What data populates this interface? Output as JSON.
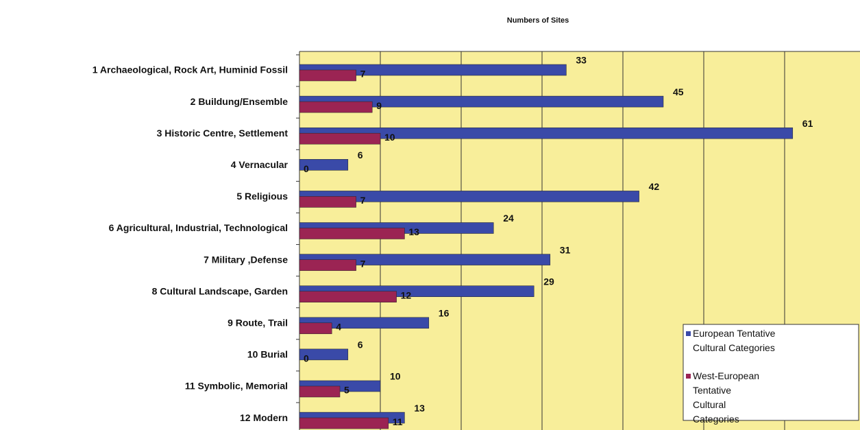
{
  "chart_data": {
    "type": "barh",
    "title": "Numbers of Sites",
    "categories": [
      "1  Archaeological,  Rock Art, Huminid Fossil",
      "2  Buildung/Ensemble",
      "3  Historic Centre,  Settlement",
      "4  Vernacular",
      "5  Religious",
      "6  Agricultural, Industrial, Technological",
      "7  Military ,Defense",
      "8  Cultural Landscape,  Garden",
      "9  Route, Trail",
      "10  Burial",
      "11  Symbolic, Memorial",
      "12  Modern"
    ],
    "series": [
      {
        "name": "European Tentative Cultural Categories",
        "color": "#3a4aa8",
        "values": [
          33,
          45,
          61,
          6,
          42,
          24,
          31,
          29,
          16,
          6,
          10,
          13
        ]
      },
      {
        "name": "West-European Tentative Cultural Categories",
        "color": "#9b2453",
        "values": [
          7,
          9,
          10,
          0,
          7,
          13,
          7,
          12,
          4,
          0,
          5,
          11
        ]
      }
    ],
    "xlim": [
      0,
      70
    ],
    "xticks": [
      10,
      20,
      30,
      40,
      50,
      60
    ],
    "grid": true,
    "legend": "lower right"
  }
}
